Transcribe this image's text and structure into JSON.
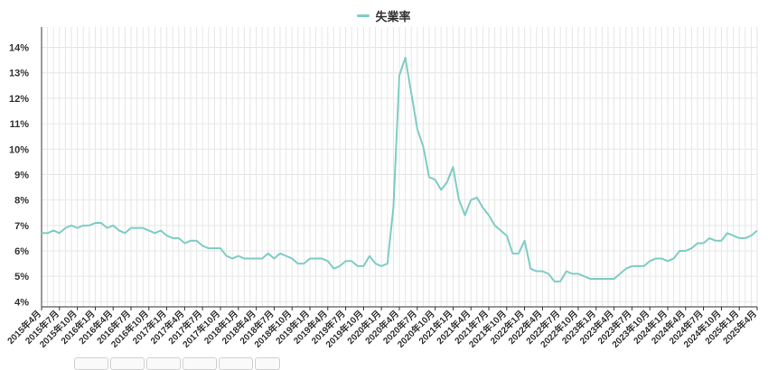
{
  "chart_data": {
    "type": "line",
    "legend_position": "top-center",
    "grid": true,
    "line_color": "#7ecdc4",
    "ylim": [
      3.8,
      14.8
    ],
    "y_ticks": [
      "4%",
      "5%",
      "6%",
      "7%",
      "8%",
      "9%",
      "10%",
      "11%",
      "12%",
      "13%",
      "14%"
    ],
    "y_tick_values": [
      4,
      5,
      6,
      7,
      8,
      9,
      10,
      11,
      12,
      13,
      14
    ],
    "x_tick_labels": [
      "2015年4月",
      "2015年7月",
      "2015年10月",
      "2016年1月",
      "2016年4月",
      "2016年7月",
      "2016年10月",
      "2017年1月",
      "2017年4月",
      "2017年7月",
      "2017年10月",
      "2018年1月",
      "2018年4月",
      "2018年7月",
      "2018年10月",
      "2019年1月",
      "2019年4月",
      "2019年7月",
      "2019年10月",
      "2020年1月",
      "2020年4月",
      "2020年7月",
      "2020年10月",
      "2021年1月",
      "2021年4月",
      "2021年7月",
      "2021年10月",
      "2022年1月",
      "2022年4月",
      "2022年7月",
      "2022年10月",
      "2023年1月",
      "2023年4月",
      "2023年7月",
      "2023年10月",
      "2024年1月",
      "2024年4月",
      "2024年7月",
      "2024年10月",
      "2025年1月",
      "2025年4月"
    ],
    "series": [
      {
        "name": "失業率",
        "values": [
          6.7,
          6.7,
          6.8,
          6.7,
          6.9,
          7.0,
          6.9,
          7.0,
          7.0,
          7.1,
          7.1,
          6.9,
          7.0,
          6.8,
          6.7,
          6.9,
          6.9,
          6.9,
          6.8,
          6.7,
          6.8,
          6.6,
          6.5,
          6.5,
          6.3,
          6.4,
          6.4,
          6.2,
          6.1,
          6.1,
          6.1,
          5.8,
          5.7,
          5.8,
          5.7,
          5.7,
          5.7,
          5.7,
          5.9,
          5.7,
          5.9,
          5.8,
          5.7,
          5.5,
          5.5,
          5.7,
          5.7,
          5.7,
          5.6,
          5.3,
          5.4,
          5.6,
          5.6,
          5.4,
          5.4,
          5.8,
          5.5,
          5.4,
          5.5,
          7.7,
          12.9,
          13.6,
          12.2,
          10.8,
          10.1,
          8.9,
          8.8,
          8.4,
          8.7,
          9.3,
          8.0,
          7.4,
          8.0,
          8.1,
          7.7,
          7.4,
          7.0,
          6.8,
          6.6,
          5.9,
          5.9,
          6.4,
          5.3,
          5.2,
          5.2,
          5.1,
          4.8,
          4.8,
          5.2,
          5.1,
          5.1,
          5.0,
          4.9,
          4.9,
          4.9,
          4.9,
          4.9,
          5.1,
          5.3,
          5.4,
          5.4,
          5.4,
          5.6,
          5.7,
          5.7,
          5.6,
          5.7,
          6.0,
          6.0,
          6.1,
          6.3,
          6.3,
          6.5,
          6.4,
          6.4,
          6.7,
          6.6,
          6.5,
          6.5,
          6.6,
          6.8
        ]
      }
    ]
  }
}
